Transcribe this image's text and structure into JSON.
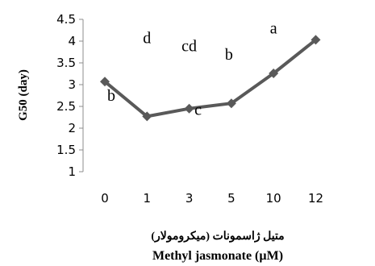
{
  "chart_data": {
    "type": "line",
    "categories": [
      "0",
      "1",
      "3",
      "5",
      "10",
      "12"
    ],
    "series": [
      {
        "values": [
          3.07,
          2.27,
          2.45,
          2.57,
          3.26,
          4.03
        ],
        "color": "#595959"
      }
    ],
    "data_labels": [
      "b",
      "d",
      "cd",
      "b",
      "a",
      ""
    ],
    "extra_annotations": [
      {
        "text": "c",
        "category_index": 2,
        "value": 2.45
      }
    ],
    "ylabel": "G50 (day)",
    "xlabel_fa": "متیل ژاسمونات (میکرومولار)",
    "xlabel": "Methyl jasmonate (µM)",
    "ylim": [
      1,
      4.5
    ],
    "yticks": [
      "1",
      "1.5",
      "2",
      "2.5",
      "3",
      "3.5",
      "4",
      "4.5"
    ],
    "grid": false,
    "legend": "none",
    "marker": "diamond"
  }
}
